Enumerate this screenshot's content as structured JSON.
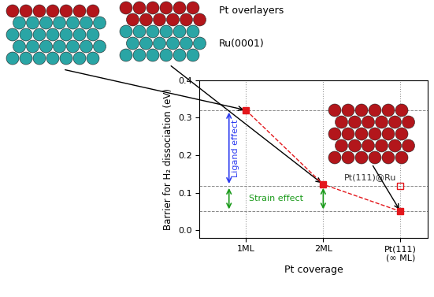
{
  "chart_data": {
    "type": "line",
    "xlabel": "Pt coverage",
    "ylabel": "Barrier for H₂ dissociation (eV)",
    "categories": [
      "1ML",
      "2ML",
      "Pt(111)\n(∞ ML)"
    ],
    "series": [
      {
        "values": [
          0.32,
          0.122,
          0.05
        ],
        "color": "#e3171c",
        "marker": "square",
        "line_style": "dashed"
      }
    ],
    "ylim": [
      -0.02,
      0.4
    ],
    "yticks": [
      0.0,
      0.1,
      0.2,
      0.3,
      0.4
    ],
    "reference_point": {
      "text": "Pt(111)@Ru",
      "category": "Pt(111)\n(∞ ML)",
      "value": 0.118,
      "color": "#e3171c",
      "marker": "square"
    },
    "effects": [
      {
        "text": "Ligand effect",
        "from": 0.32,
        "to": 0.118,
        "color": "#2d3cf0"
      },
      {
        "text": "Strain effect",
        "from": 0.118,
        "to": 0.05,
        "color": "#1a9a1a"
      }
    ],
    "structure_labels": [
      "Pt overlayers",
      "Ru(0001)"
    ]
  }
}
